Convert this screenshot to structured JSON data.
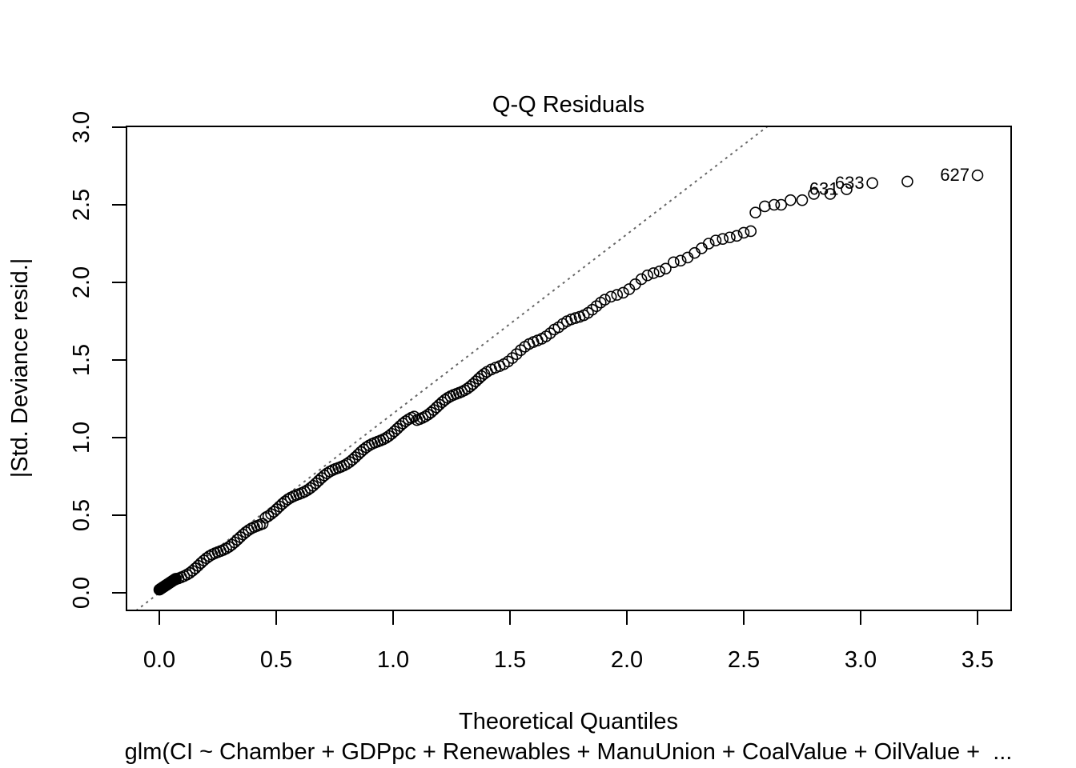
{
  "chart_data": {
    "type": "scatter",
    "title": "Q-Q Residuals",
    "xlabel": "Theoretical Quantiles",
    "ylabel": "|Std. Deviance resid.|",
    "subtitle": "glm(CI ~ Chamber + GDPpc + Renewables + ManuUnion + CoalValue + OilValue +  ...",
    "xlim": [
      -0.1,
      3.6
    ],
    "ylim": [
      -0.1,
      3.0
    ],
    "xticks": [
      "0.0",
      "0.5",
      "1.0",
      "1.5",
      "2.0",
      "2.5",
      "3.0",
      "3.5"
    ],
    "yticks": [
      "0.0",
      "0.5",
      "1.0",
      "1.5",
      "2.0",
      "2.5",
      "3.0"
    ],
    "reference_line": {
      "style": "dotted",
      "color": "#666666",
      "slope": 1.155,
      "intercept": 0.0
    },
    "points_description": "open circles, approximately along the reference line for x < 1.7, then below it",
    "tail_points": [
      {
        "x": 2.2,
        "y": 2.13
      },
      {
        "x": 2.23,
        "y": 2.14
      },
      {
        "x": 2.26,
        "y": 2.16
      },
      {
        "x": 2.29,
        "y": 2.19
      },
      {
        "x": 2.32,
        "y": 2.22
      },
      {
        "x": 2.35,
        "y": 2.25
      },
      {
        "x": 2.38,
        "y": 2.27
      },
      {
        "x": 2.41,
        "y": 2.28
      },
      {
        "x": 2.44,
        "y": 2.29
      },
      {
        "x": 2.47,
        "y": 2.3
      },
      {
        "x": 2.5,
        "y": 2.32
      },
      {
        "x": 2.53,
        "y": 2.33
      },
      {
        "x": 2.55,
        "y": 2.45
      },
      {
        "x": 2.59,
        "y": 2.49
      },
      {
        "x": 2.63,
        "y": 2.5
      },
      {
        "x": 2.66,
        "y": 2.5
      },
      {
        "x": 2.7,
        "y": 2.53
      },
      {
        "x": 2.75,
        "y": 2.53
      },
      {
        "x": 2.8,
        "y": 2.57
      },
      {
        "x": 2.87,
        "y": 2.57
      },
      {
        "x": 2.94,
        "y": 2.6
      },
      {
        "x": 3.05,
        "y": 2.64
      },
      {
        "x": 3.2,
        "y": 2.65
      },
      {
        "x": 3.5,
        "y": 2.69
      }
    ],
    "labeled_points": [
      {
        "label": "631",
        "x": 2.94,
        "y": 2.6
      },
      {
        "label": "633",
        "x": 3.05,
        "y": 2.64
      },
      {
        "label": "627",
        "x": 3.5,
        "y": 2.69
      }
    ]
  }
}
